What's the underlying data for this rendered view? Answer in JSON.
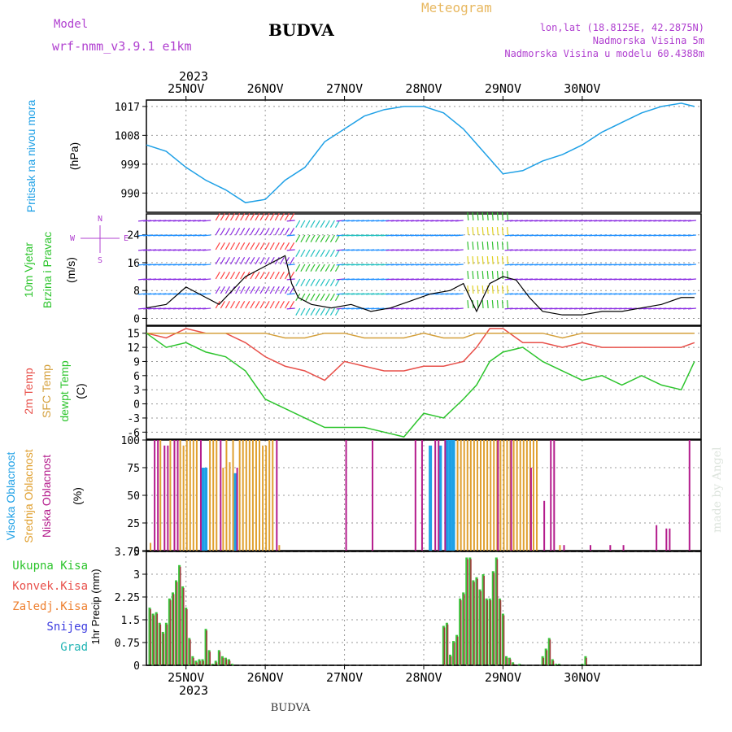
{
  "header": {
    "model_label": "Model",
    "model_name": "wrf-nmm_v3.9.1 e1km",
    "title": "BUDVA",
    "meteogram": "Meteogram",
    "lonlat": "lon,lat (18.8125E, 42.2875N)",
    "elevation": "Nadmorska Visina 5m",
    "model_elevation": "Nadmorska Visina u modelu 60.4388m",
    "footer": "BUDVA",
    "credit": "made by Angel"
  },
  "colors": {
    "pressure": "#1ea0e6",
    "temp2m": "#e8504a",
    "sfc": "#d4a03c",
    "dewpt": "#2cc42c",
    "high_cloud": "#1ea0e6",
    "mid_cloud": "#e0a030",
    "low_cloud": "#b41c8c",
    "precip_total": "#3cc43c",
    "precip_conv": "#a03c3c",
    "wind_speed": "#000000"
  },
  "chart_data": [
    {
      "type": "line",
      "panel": "pressure",
      "ylabel_main": "Pritisak na nivou mora",
      "ylabel_unit": "(hPa)",
      "yticks": [
        1017,
        1008,
        999,
        990
      ],
      "ylim": [
        984,
        1019
      ],
      "x_hours": [
        0,
        6,
        12,
        18,
        24,
        30,
        36,
        42,
        48,
        54,
        60,
        66,
        72,
        78,
        84,
        90,
        96,
        102,
        108,
        114,
        120,
        126,
        132,
        138,
        144,
        150,
        156,
        162,
        166
      ],
      "values": [
        1005,
        1003,
        998,
        994,
        991,
        987,
        988,
        994,
        998,
        1006,
        1010,
        1014,
        1016,
        1017,
        1017,
        1015,
        1010,
        1003,
        996,
        997,
        1000,
        1002,
        1005,
        1009,
        1012,
        1015,
        1017,
        1018,
        1017
      ]
    },
    {
      "type": "line",
      "panel": "wind",
      "ylabel_main": "10m Vjetar",
      "ylabel_sub": "Brzina i Pravac",
      "ylabel_unit": "(m/s)",
      "compass": [
        "N",
        "W",
        "E",
        "S"
      ],
      "yticks": [
        24,
        16,
        8,
        0
      ],
      "ylim": [
        -2,
        30
      ],
      "x_hours": [
        0,
        6,
        12,
        18,
        22,
        26,
        30,
        36,
        42,
        44,
        46,
        50,
        56,
        62,
        68,
        74,
        80,
        86,
        92,
        96,
        100,
        104,
        108,
        112,
        116,
        120,
        126,
        132,
        138,
        144,
        150,
        156,
        162,
        166
      ],
      "values": [
        3,
        4,
        9,
        6,
        4,
        8,
        12,
        15,
        18,
        10,
        6,
        4,
        3,
        4,
        2,
        3,
        5,
        7,
        8,
        10,
        2,
        10,
        12,
        11,
        6,
        2,
        1,
        1,
        2,
        2,
        3,
        4,
        6,
        6
      ]
    },
    {
      "type": "line",
      "panel": "temperature",
      "ylabel_lines": [
        "2m Temp",
        "SFC Temp",
        "dewpt Temp"
      ],
      "ylabel_unit": "(C)",
      "yticks": [
        15,
        12,
        9,
        6,
        3,
        0,
        -3,
        -6
      ],
      "ylim": [
        -7.5,
        16.5
      ],
      "x_hours": [
        0,
        6,
        12,
        18,
        24,
        30,
        36,
        42,
        48,
        54,
        60,
        66,
        72,
        78,
        84,
        90,
        96,
        100,
        104,
        108,
        114,
        120,
        126,
        132,
        138,
        144,
        150,
        156,
        162,
        166
      ],
      "series": [
        {
          "name": "2m Temp",
          "color_key": "temp2m",
          "values": [
            15,
            14,
            16,
            15,
            15,
            13,
            10,
            8,
            7,
            5,
            9,
            8,
            7,
            7,
            8,
            8,
            9,
            12,
            16,
            16,
            13,
            13,
            12,
            13,
            12,
            12,
            12,
            12,
            12,
            13
          ]
        },
        {
          "name": "SFC Temp",
          "color_key": "sfc",
          "values": [
            15,
            15,
            15,
            15,
            15,
            15,
            15,
            14,
            14,
            15,
            15,
            14,
            14,
            14,
            15,
            14,
            14,
            15,
            15,
            15,
            15,
            15,
            14,
            15,
            15,
            15,
            15,
            15,
            15,
            15
          ]
        },
        {
          "name": "dewpt Temp",
          "color_key": "dewpt",
          "values": [
            15,
            12,
            13,
            11,
            10,
            7,
            1,
            -1,
            -3,
            -5,
            -5,
            -5,
            -6,
            -7,
            -2,
            -3,
            1,
            4,
            9,
            11,
            12,
            9,
            7,
            5,
            6,
            4,
            6,
            4,
            3,
            9
          ]
        }
      ]
    },
    {
      "type": "bar",
      "panel": "clouds",
      "ylabel_lines": [
        "Visoka Oblacnost",
        "Srednja Oblacnost",
        "Niska Oblacnost"
      ],
      "ylabel_unit": "(%)",
      "yticks": [
        100,
        75,
        50,
        25,
        0
      ],
      "ylim": [
        0,
        100
      ],
      "series": [
        {
          "name": "Visoka Oblacnost",
          "color_key": "high_cloud",
          "x_hours": [
            17,
            18,
            27,
            86,
            89,
            91,
            92,
            93
          ],
          "values": [
            75,
            75,
            70,
            95,
            95,
            100,
            100,
            100
          ]
        },
        {
          "name": "Srednja Oblacnost",
          "color_key": "mid_cloud",
          "x_hours": [
            1,
            4,
            7,
            10,
            11,
            12,
            13,
            14,
            15,
            19,
            20,
            21,
            23,
            24,
            25,
            26,
            28,
            29,
            30,
            31,
            32,
            33,
            34,
            35,
            36,
            37,
            38,
            40,
            94,
            95,
            96,
            97,
            98,
            99,
            100,
            101,
            102,
            103,
            104,
            105,
            106,
            107,
            108,
            109,
            110,
            111,
            112,
            113,
            114,
            115,
            116,
            117,
            118,
            125
          ],
          "values": [
            7,
            100,
            100,
            100,
            95,
            100,
            100,
            100,
            100,
            100,
            100,
            100,
            75,
            100,
            80,
            100,
            100,
            100,
            100,
            100,
            100,
            100,
            100,
            95,
            95,
            100,
            100,
            5,
            100,
            100,
            100,
            100,
            100,
            100,
            100,
            100,
            100,
            100,
            100,
            100,
            100,
            100,
            100,
            100,
            100,
            100,
            100,
            100,
            100,
            100,
            100,
            100,
            100,
            5
          ]
        },
        {
          "name": "Niska Oblacnost",
          "color_key": "low_cloud",
          "x_hours": [
            2,
            3,
            5,
            6,
            8,
            9,
            16,
            22,
            27,
            39,
            60,
            68,
            81,
            83,
            87,
            88,
            90,
            106,
            110,
            116,
            120,
            122,
            123,
            126,
            134,
            140,
            144,
            154,
            157,
            158,
            164
          ],
          "values": [
            100,
            100,
            95,
            95,
            100,
            100,
            100,
            100,
            75,
            100,
            100,
            100,
            100,
            100,
            100,
            100,
            100,
            100,
            100,
            75,
            45,
            100,
            100,
            5,
            5,
            5,
            5,
            23,
            20,
            20,
            100
          ]
        }
      ]
    },
    {
      "type": "bar",
      "panel": "precip",
      "ylabel_main": "1hr Precip (mm)",
      "legend": [
        "Ukupna Kisa",
        "Konvek.Kisa",
        "Zaledj.Kisa",
        "Snijeg",
        "Grad"
      ],
      "legend_color_keys": [
        "precip_total",
        "precip_conv",
        "sfc",
        "high_cloud",
        "pressure"
      ],
      "legend_colors": [
        "#2cc42c",
        "#e8504a",
        "#ee8030",
        "#3c3ce0",
        "#22b4b4"
      ],
      "yticks": [
        3.75,
        3,
        2.25,
        1.5,
        0.75,
        0
      ],
      "ylim": [
        0,
        3.75
      ],
      "x_hours": [
        1,
        2,
        3,
        4,
        5,
        6,
        7,
        8,
        9,
        10,
        11,
        12,
        13,
        14,
        15,
        16,
        17,
        18,
        19,
        20,
        21,
        22,
        23,
        24,
        25,
        26,
        27,
        28,
        29,
        30,
        90,
        91,
        92,
        93,
        94,
        95,
        96,
        97,
        98,
        99,
        100,
        101,
        102,
        103,
        104,
        105,
        106,
        107,
        108,
        109,
        110,
        111,
        112,
        113,
        114,
        115,
        116,
        117,
        118,
        119,
        120,
        121,
        122,
        123,
        124,
        125,
        126,
        127,
        128,
        129,
        130,
        131,
        132,
        133,
        134,
        135,
        136,
        137,
        138,
        139,
        140,
        141,
        142,
        143,
        144,
        145,
        146,
        147,
        148,
        149,
        150,
        151,
        152,
        153,
        154,
        155,
        156,
        157,
        158,
        159,
        160,
        161,
        162,
        163,
        164,
        165,
        166,
        167,
        168
      ],
      "values": [
        1.9,
        1.7,
        1.75,
        1.4,
        1.1,
        1.4,
        2.2,
        2.4,
        2.8,
        3.3,
        2.6,
        1.9,
        0.9,
        0.3,
        0.15,
        0.2,
        0.2,
        1.2,
        0.5,
        0.05,
        0.15,
        0.5,
        0.3,
        0.25,
        0.2,
        0.05,
        0,
        0,
        0,
        0,
        1.3,
        1.4,
        0.35,
        0.8,
        1.0,
        2.2,
        2.4,
        3.55,
        3.55,
        2.8,
        2.9,
        2.5,
        3.0,
        2.2,
        2.2,
        3.1,
        3.55,
        2.2,
        1.7,
        0.3,
        0.25,
        0.1,
        0,
        0.05,
        0,
        0,
        0,
        0,
        0,
        0,
        0.3,
        0.55,
        0.9,
        0.2,
        0.05,
        0.05,
        0,
        0,
        0,
        0,
        0,
        0,
        0.05,
        0.3,
        0,
        0,
        0,
        0,
        0,
        0,
        0,
        0,
        0,
        0,
        0,
        0,
        0,
        0,
        0,
        0,
        0,
        0,
        0,
        0,
        0,
        0,
        0,
        0,
        0,
        0,
        0,
        0,
        0,
        0,
        0,
        0,
        0,
        0,
        0
      ]
    }
  ],
  "x_axis": {
    "top_year": "2023",
    "bottom_year": "2023",
    "dates": [
      "25NOV",
      "26NOV",
      "27NOV",
      "28NOV",
      "29NOV",
      "30NOV"
    ],
    "date_hours": [
      12,
      36,
      60,
      84,
      108,
      132
    ]
  }
}
